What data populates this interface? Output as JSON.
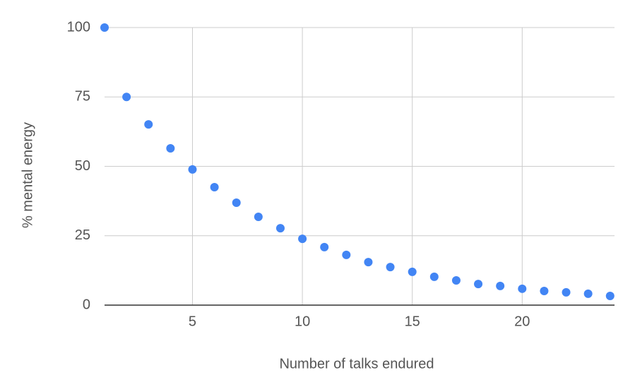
{
  "chart_data": {
    "type": "scatter",
    "x_label": "Number of talks endured",
    "y_label": "% mental energy",
    "x": [
      1,
      2,
      3,
      4,
      5,
      6,
      7,
      8,
      9,
      10,
      11,
      12,
      13,
      14,
      15,
      16,
      17,
      18,
      19,
      20,
      21,
      22,
      23,
      24
    ],
    "values": [
      100,
      75,
      65.1,
      56.5,
      48.9,
      42.5,
      36.9,
      31.8,
      27.7,
      23.9,
      20.9,
      18.1,
      15.5,
      13.7,
      12,
      10.2,
      8.9,
      7.6,
      6.9,
      5.9,
      5.1,
      4.6,
      4.1,
      3.3
    ],
    "color": "#4285f4",
    "xlim": [
      1,
      24.2
    ],
    "xticks": [
      5,
      10,
      15,
      20
    ],
    "ylim": [
      0,
      100
    ],
    "yticks": [
      0,
      25,
      50,
      75,
      100
    ],
    "grid": true
  }
}
